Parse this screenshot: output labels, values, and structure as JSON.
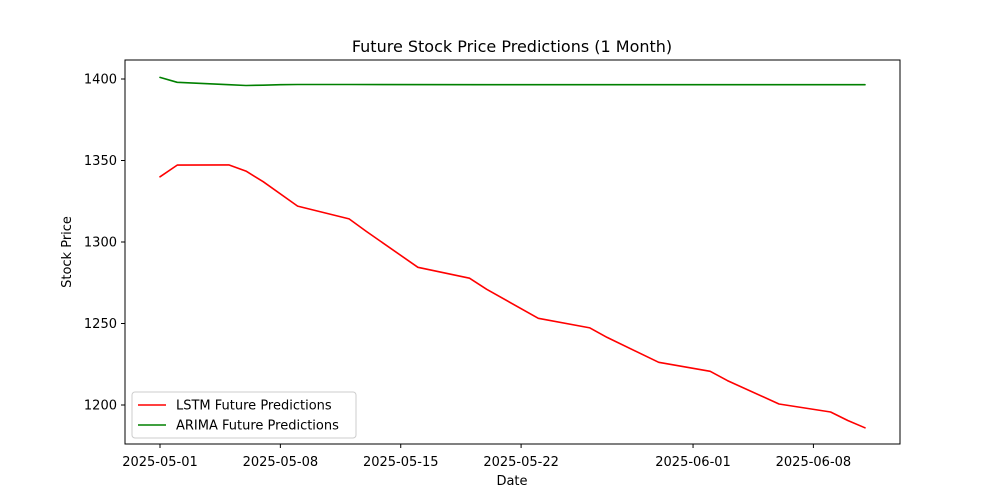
{
  "chart_data": {
    "type": "line",
    "title": "Future Stock Price Predictions (1 Month)",
    "xlabel": "Date",
    "ylabel": "Stock Price",
    "x_ticks": [
      "2025-05-01",
      "2025-05-08",
      "2025-05-15",
      "2025-05-22",
      "2025-06-01",
      "2025-06-08"
    ],
    "y_ticks": [
      1200,
      1250,
      1300,
      1350,
      1400
    ],
    "xlim": [
      "2024-04-28",
      "2025-06-12"
    ],
    "ylim": [
      1181,
      1406
    ],
    "grid": false,
    "legend_position": "lower-left",
    "series": [
      {
        "name": "LSTM Future Predictions",
        "color": "#ff0000",
        "points": [
          [
            "2025-05-01",
            1340.0
          ],
          [
            "2025-05-02",
            1347.2
          ],
          [
            "2025-05-05",
            1347.3
          ],
          [
            "2025-05-06",
            1343.5
          ],
          [
            "2025-05-07",
            1337.0
          ],
          [
            "2025-05-09",
            1322.0
          ],
          [
            "2025-05-12",
            1314.2
          ],
          [
            "2025-05-13",
            1306.5
          ],
          [
            "2025-05-16",
            1284.5
          ],
          [
            "2025-05-19",
            1277.8
          ],
          [
            "2025-05-20",
            1271.0
          ],
          [
            "2025-05-23",
            1253.2
          ],
          [
            "2025-05-26",
            1247.3
          ],
          [
            "2025-05-27",
            1241.5
          ],
          [
            "2025-05-30",
            1226.2
          ],
          [
            "2025-06-02",
            1220.7
          ],
          [
            "2025-06-03",
            1215.0
          ],
          [
            "2025-06-06",
            1200.6
          ],
          [
            "2025-06-09",
            1195.7
          ],
          [
            "2025-06-10",
            1190.5
          ],
          [
            "2025-06-11",
            1186.0
          ]
        ]
      },
      {
        "name": "ARIMA Future Predictions",
        "color": "#008000",
        "points": [
          [
            "2025-05-01",
            1401.0
          ],
          [
            "2025-05-02",
            1398.0
          ],
          [
            "2025-05-05",
            1396.5
          ],
          [
            "2025-05-06",
            1396.0
          ],
          [
            "2025-05-07",
            1396.2
          ],
          [
            "2025-05-08",
            1396.5
          ],
          [
            "2025-05-09",
            1396.6
          ],
          [
            "2025-05-12",
            1396.6
          ],
          [
            "2025-05-20",
            1396.5
          ],
          [
            "2025-06-01",
            1396.5
          ],
          [
            "2025-06-11",
            1396.5
          ]
        ]
      }
    ]
  }
}
